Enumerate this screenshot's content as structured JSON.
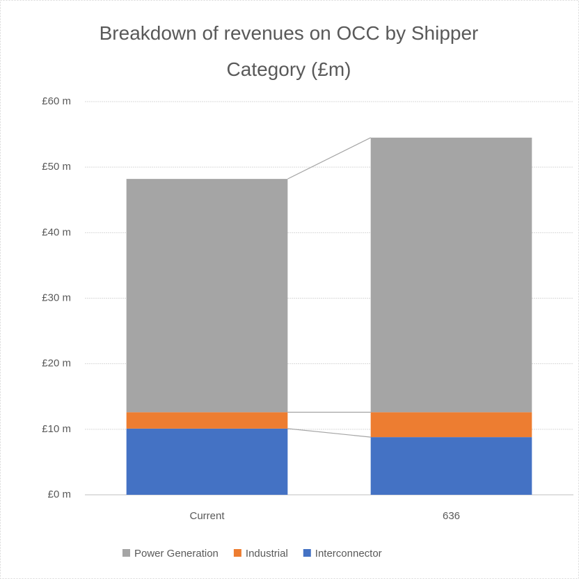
{
  "chart_data": {
    "type": "stacked_bar",
    "title": "Breakdown of revenues on OCC by Shipper Category (£m)",
    "categories": [
      "Current",
      "636"
    ],
    "series": [
      {
        "name": "Interconnector",
        "color": "#4472c4",
        "values": [
          10.1,
          8.8
        ]
      },
      {
        "name": "Industrial",
        "color": "#ed7d31",
        "values": [
          2.5,
          3.8
        ]
      },
      {
        "name": "Power Generation",
        "color": "#a5a5a5",
        "values": [
          35.6,
          41.9
        ]
      }
    ],
    "ylim": [
      0,
      60
    ],
    "yticks": [
      {
        "value": 0,
        "label": "£0 m"
      },
      {
        "value": 10,
        "label": "£10 m"
      },
      {
        "value": 20,
        "label": "£20 m"
      },
      {
        "value": 30,
        "label": "£30 m"
      },
      {
        "value": 40,
        "label": "£40 m"
      },
      {
        "value": 50,
        "label": "£50 m"
      },
      {
        "value": 60,
        "label": "£60 m"
      }
    ],
    "grid": true,
    "legend": "bottom"
  }
}
